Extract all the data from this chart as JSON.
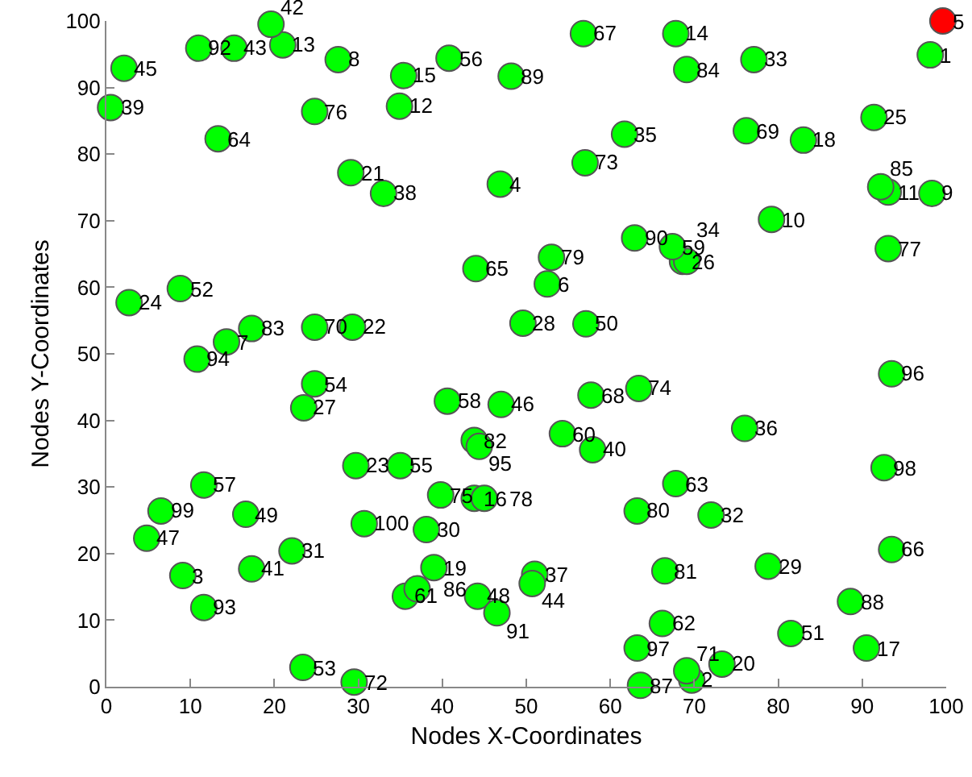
{
  "chart_data": {
    "type": "scatter",
    "xlabel": "Nodes X-Coordinates",
    "ylabel": "Nodes Y-Coordinates",
    "xlim": [
      0,
      100
    ],
    "xticks": [
      0,
      10,
      20,
      30,
      40,
      50,
      60,
      70,
      80,
      90,
      100
    ],
    "ylim": [
      0,
      100
    ],
    "yticks": [
      0,
      10,
      20,
      30,
      40,
      50,
      60,
      70,
      80,
      90,
      100
    ],
    "grid": false,
    "legend": false,
    "marker": "circle",
    "series": [
      {
        "x": [
          98.1,
          69.7,
          9.1,
          46.9,
          99.6,
          52.5,
          14.3,
          27.6,
          98.3,
          79.2,
          93.1,
          34.9,
          21.0,
          67.8,
          35.4,
          43.8,
          90.5,
          83.0,
          39.0,
          73.3,
          29.1,
          29.3,
          29.7,
          2.7,
          91.4,
          68.6,
          23.5,
          49.6,
          78.8,
          38.1,
          22.1,
          72.0,
          77.1,
          69.1,
          61.7,
          76.0,
          51.0,
          33.0,
          0.5,
          57.9,
          17.3,
          19.6,
          15.2,
          50.7,
          2.1,
          47.0,
          4.8,
          44.2,
          16.6,
          57.1,
          81.5,
          8.8,
          23.4,
          24.8,
          35.0,
          40.8,
          11.6,
          40.6,
          67.4,
          54.3,
          35.6,
          66.2,
          67.8,
          13.3,
          44.0,
          93.5,
          56.8,
          57.7,
          76.2,
          24.8,
          69.1,
          29.5,
          57.0,
          63.4,
          39.8,
          24.8,
          93.1,
          45.0,
          53.0,
          63.2,
          66.5,
          43.8,
          17.3,
          69.1,
          92.2,
          37.0,
          63.6,
          88.6,
          48.2,
          62.9,
          46.5,
          11.0,
          11.6,
          10.8,
          44.4,
          93.5,
          63.2,
          92.6,
          6.5,
          30.7
        ],
        "values": [
          94.9,
          1.0,
          16.7,
          75.5,
          100,
          60.5,
          51.8,
          94.2,
          74.1,
          70.2,
          74.3,
          87.2,
          96.4,
          98.1,
          91.8,
          28.3,
          5.8,
          82.1,
          17.9,
          3.4,
          77.2,
          54.0,
          33.2,
          57.7,
          85.5,
          63.9,
          41.9,
          54.6,
          18.1,
          23.6,
          20.4,
          25.8,
          94.2,
          63.9,
          83.0,
          38.8,
          16.9,
          74.1,
          87.0,
          35.6,
          17.7,
          99.5,
          95.9,
          15.5,
          92.9,
          42.4,
          22.3,
          13.6,
          25.9,
          54.5,
          8.0,
          59.8,
          2.9,
          45.5,
          33.2,
          94.4,
          30.3,
          42.9,
          66.1,
          38.0,
          13.6,
          9.5,
          30.5,
          82.3,
          62.8,
          20.6,
          98.1,
          43.8,
          83.5,
          54.0,
          2.4,
          0.7,
          78.7,
          44.8,
          28.8,
          86.4,
          65.8,
          28.3,
          64.5,
          26.4,
          17.4,
          37.0,
          53.8,
          92.7,
          75.1,
          14.7,
          0.2,
          12.8,
          91.7,
          67.4,
          11.1,
          95.9,
          11.9,
          49.2,
          36.1,
          47.0,
          5.8,
          32.9,
          26.4,
          24.5
        ],
        "colors": [
          "#00ff00",
          "#00ff00",
          "#00ff00",
          "#00ff00",
          "#ff0000",
          "#00ff00",
          "#00ff00",
          "#00ff00",
          "#00ff00",
          "#00ff00",
          "#00ff00",
          "#00ff00",
          "#00ff00",
          "#00ff00",
          "#00ff00",
          "#00ff00",
          "#00ff00",
          "#00ff00",
          "#00ff00",
          "#00ff00",
          "#00ff00",
          "#00ff00",
          "#00ff00",
          "#00ff00",
          "#00ff00",
          "#00ff00",
          "#00ff00",
          "#00ff00",
          "#00ff00",
          "#00ff00",
          "#00ff00",
          "#00ff00",
          "#00ff00",
          "#00ff00",
          "#00ff00",
          "#00ff00",
          "#00ff00",
          "#00ff00",
          "#00ff00",
          "#00ff00",
          "#00ff00",
          "#00ff00",
          "#00ff00",
          "#00ff00",
          "#00ff00",
          "#00ff00",
          "#00ff00",
          "#00ff00",
          "#00ff00",
          "#00ff00",
          "#00ff00",
          "#00ff00",
          "#00ff00",
          "#00ff00",
          "#00ff00",
          "#00ff00",
          "#00ff00",
          "#00ff00",
          "#00ff00",
          "#00ff00",
          "#00ff00",
          "#00ff00",
          "#00ff00",
          "#00ff00",
          "#00ff00",
          "#00ff00",
          "#00ff00",
          "#00ff00",
          "#00ff00",
          "#00ff00",
          "#00ff00",
          "#00ff00",
          "#00ff00",
          "#00ff00",
          "#00ff00",
          "#00ff00",
          "#00ff00",
          "#00ff00",
          "#00ff00",
          "#00ff00",
          "#00ff00",
          "#00ff00",
          "#00ff00",
          "#00ff00",
          "#00ff00",
          "#00ff00",
          "#00ff00",
          "#00ff00",
          "#00ff00",
          "#00ff00",
          "#00ff00",
          "#00ff00",
          "#00ff00",
          "#00ff00",
          "#00ff00",
          "#00ff00",
          "#00ff00",
          "#00ff00",
          "#00ff00",
          "#00ff00"
        ]
      }
    ],
    "annotations": [
      {
        "text": "1",
        "x": 98.1,
        "y": 94.9
      },
      {
        "text": "2",
        "x": 69.7,
        "y": 1.0
      },
      {
        "text": "3",
        "x": 9.1,
        "y": 16.7
      },
      {
        "text": "4",
        "x": 46.9,
        "y": 75.5
      },
      {
        "text": "5",
        "x": 99.6,
        "y": 100
      },
      {
        "text": "6",
        "x": 52.5,
        "y": 60.5
      },
      {
        "text": "7",
        "x": 14.3,
        "y": 51.8
      },
      {
        "text": "8",
        "x": 27.6,
        "y": 94.2
      },
      {
        "text": "9",
        "x": 98.3,
        "y": 74.1
      },
      {
        "text": "10",
        "x": 79.2,
        "y": 70.2
      },
      {
        "text": "11",
        "x": 93.1,
        "y": 74.3
      },
      {
        "text": "12",
        "x": 34.9,
        "y": 87.2
      },
      {
        "text": "13",
        "x": 21.0,
        "y": 96.4
      },
      {
        "text": "14",
        "x": 67.8,
        "y": 98.1
      },
      {
        "text": "15",
        "x": 35.4,
        "y": 91.8
      },
      {
        "text": "16",
        "x": 43.8,
        "y": 28.3
      },
      {
        "text": "17",
        "x": 90.5,
        "y": 5.8
      },
      {
        "text": "18",
        "x": 83.0,
        "y": 82.1
      },
      {
        "text": "19",
        "x": 39.0,
        "y": 17.9
      },
      {
        "text": "20",
        "x": 73.3,
        "y": 3.4
      },
      {
        "text": "21",
        "x": 29.1,
        "y": 77.2
      },
      {
        "text": "22",
        "x": 29.3,
        "y": 54.0
      },
      {
        "text": "23",
        "x": 29.7,
        "y": 33.2
      },
      {
        "text": "24",
        "x": 2.7,
        "y": 57.7
      },
      {
        "text": "25",
        "x": 91.4,
        "y": 85.5
      },
      {
        "text": "26",
        "x": 68.6,
        "y": 63.9
      },
      {
        "text": "27",
        "x": 23.5,
        "y": 41.9
      },
      {
        "text": "28",
        "x": 49.6,
        "y": 54.6
      },
      {
        "text": "29",
        "x": 78.8,
        "y": 18.1
      },
      {
        "text": "30",
        "x": 38.1,
        "y": 23.6
      },
      {
        "text": "31",
        "x": 22.1,
        "y": 20.4
      },
      {
        "text": "32",
        "x": 72.0,
        "y": 25.8
      },
      {
        "text": "33",
        "x": 77.1,
        "y": 94.2
      },
      {
        "text": "34",
        "x": 69.1,
        "y": 63.9
      },
      {
        "text": "35",
        "x": 61.7,
        "y": 83.0
      },
      {
        "text": "36",
        "x": 76.0,
        "y": 38.8
      },
      {
        "text": "37",
        "x": 51.0,
        "y": 16.9
      },
      {
        "text": "38",
        "x": 33.0,
        "y": 74.1
      },
      {
        "text": "39",
        "x": 0.5,
        "y": 87.0
      },
      {
        "text": "40",
        "x": 57.9,
        "y": 35.6
      },
      {
        "text": "41",
        "x": 17.3,
        "y": 17.7
      },
      {
        "text": "42",
        "x": 19.6,
        "y": 99.5
      },
      {
        "text": "43",
        "x": 15.2,
        "y": 95.9
      },
      {
        "text": "44",
        "x": 50.7,
        "y": 15.5
      },
      {
        "text": "45",
        "x": 2.1,
        "y": 92.9
      },
      {
        "text": "46",
        "x": 47.0,
        "y": 42.4
      },
      {
        "text": "47",
        "x": 4.8,
        "y": 22.3
      },
      {
        "text": "48",
        "x": 44.2,
        "y": 13.6
      },
      {
        "text": "49",
        "x": 16.6,
        "y": 25.9
      },
      {
        "text": "50",
        "x": 57.1,
        "y": 54.5
      },
      {
        "text": "51",
        "x": 81.5,
        "y": 8.0
      },
      {
        "text": "52",
        "x": 8.8,
        "y": 59.8
      },
      {
        "text": "53",
        "x": 23.4,
        "y": 2.9
      },
      {
        "text": "54",
        "x": 24.8,
        "y": 45.5
      },
      {
        "text": "55",
        "x": 35.0,
        "y": 33.2
      },
      {
        "text": "56",
        "x": 40.8,
        "y": 94.4
      },
      {
        "text": "57",
        "x": 11.6,
        "y": 30.3
      },
      {
        "text": "58",
        "x": 40.6,
        "y": 42.9
      },
      {
        "text": "59",
        "x": 67.4,
        "y": 66.1
      },
      {
        "text": "60",
        "x": 54.3,
        "y": 38.0
      },
      {
        "text": "61",
        "x": 35.6,
        "y": 13.6
      },
      {
        "text": "62",
        "x": 66.2,
        "y": 9.5
      },
      {
        "text": "63",
        "x": 67.8,
        "y": 30.5
      },
      {
        "text": "64",
        "x": 13.3,
        "y": 82.3
      },
      {
        "text": "65",
        "x": 44.0,
        "y": 62.8
      },
      {
        "text": "66",
        "x": 93.5,
        "y": 20.6
      },
      {
        "text": "67",
        "x": 56.8,
        "y": 98.1
      },
      {
        "text": "68",
        "x": 57.7,
        "y": 43.8
      },
      {
        "text": "69",
        "x": 76.2,
        "y": 83.5
      },
      {
        "text": "70",
        "x": 24.8,
        "y": 54.0
      },
      {
        "text": "71",
        "x": 69.1,
        "y": 2.4
      },
      {
        "text": "72",
        "x": 29.5,
        "y": 0.7
      },
      {
        "text": "73",
        "x": 57.0,
        "y": 78.7
      },
      {
        "text": "74",
        "x": 63.4,
        "y": 44.8
      },
      {
        "text": "75",
        "x": 39.8,
        "y": 28.8
      },
      {
        "text": "76",
        "x": 24.8,
        "y": 86.4
      },
      {
        "text": "77",
        "x": 93.1,
        "y": 65.8
      },
      {
        "text": "78",
        "x": 45.0,
        "y": 28.3
      },
      {
        "text": "79",
        "x": 53.0,
        "y": 64.5
      },
      {
        "text": "80",
        "x": 63.2,
        "y": 26.4
      },
      {
        "text": "81",
        "x": 66.5,
        "y": 17.4
      },
      {
        "text": "82",
        "x": 43.8,
        "y": 37.0
      },
      {
        "text": "83",
        "x": 17.3,
        "y": 53.8
      },
      {
        "text": "84",
        "x": 69.1,
        "y": 92.7
      },
      {
        "text": "85",
        "x": 92.2,
        "y": 75.1
      },
      {
        "text": "86",
        "x": 37.0,
        "y": 14.7
      },
      {
        "text": "87",
        "x": 63.6,
        "y": 0.2
      },
      {
        "text": "88",
        "x": 88.6,
        "y": 12.8
      },
      {
        "text": "89",
        "x": 48.2,
        "y": 91.7
      },
      {
        "text": "90",
        "x": 62.9,
        "y": 67.4
      },
      {
        "text": "91",
        "x": 46.5,
        "y": 11.1
      },
      {
        "text": "92",
        "x": 11.0,
        "y": 95.9
      },
      {
        "text": "93",
        "x": 11.6,
        "y": 11.9
      },
      {
        "text": "94",
        "x": 10.8,
        "y": 49.2
      },
      {
        "text": "95",
        "x": 44.4,
        "y": 36.1
      },
      {
        "text": "96",
        "x": 93.5,
        "y": 47.0
      },
      {
        "text": "97",
        "x": 63.2,
        "y": 5.8
      },
      {
        "text": "98",
        "x": 92.6,
        "y": 32.9
      },
      {
        "text": "99",
        "x": 6.5,
        "y": 26.4
      },
      {
        "text": "100",
        "x": 30.7,
        "y": 24.5
      }
    ]
  }
}
